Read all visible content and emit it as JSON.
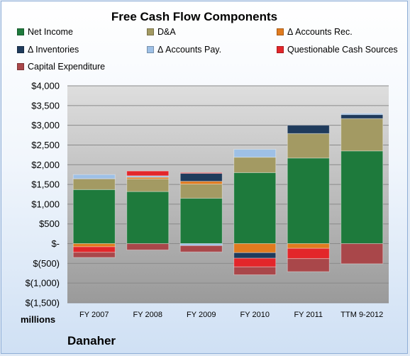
{
  "chart_data": {
    "type": "bar",
    "stacked": true,
    "title": "Free Cash Flow Components",
    "categories": [
      "FY 2007",
      "FY 2008",
      "FY 2009",
      "FY 2010",
      "FY 2011",
      "TTM 9-2012"
    ],
    "series": [
      {
        "name": "Net Income",
        "color": "#1e7a3c",
        "values": [
          1370,
          1320,
          1150,
          1800,
          2170,
          2350
        ]
      },
      {
        "name": "D&A",
        "color": "#a39a63",
        "values": [
          270,
          320,
          360,
          390,
          620,
          820
        ]
      },
      {
        "name": "Δ Accounts Rec.",
        "color": "#e07b1f",
        "values": [
          -80,
          40,
          70,
          -230,
          -120,
          0
        ]
      },
      {
        "name": "Δ Inventories",
        "color": "#1f3b5c",
        "values": [
          10,
          10,
          200,
          -140,
          210,
          100
        ]
      },
      {
        "name": "Δ Accounts Pay.",
        "color": "#9ec0e6",
        "values": [
          100,
          30,
          -50,
          200,
          0,
          30
        ]
      },
      {
        "name": "Questionable Cash Sources",
        "color": "#e3262a",
        "values": [
          -140,
          120,
          20,
          -220,
          -260,
          0
        ]
      },
      {
        "name": "Capital Expenditure",
        "color": "#a9474a",
        "values": [
          -130,
          -160,
          -160,
          -200,
          -330,
          -510
        ]
      }
    ],
    "ylim": [
      -1500,
      4000
    ],
    "ytick_values": [
      4000,
      3500,
      3000,
      2500,
      2000,
      1500,
      1000,
      500,
      0,
      -500,
      -1000,
      -1500
    ],
    "ytick_labels": [
      "$4,000",
      "$3,500",
      "$3,000",
      "$2,500",
      "$2,000",
      "$1,500",
      "$1,000",
      "$500",
      "$-",
      "$(500)",
      "$(1,000)",
      "$(1,500)"
    ],
    "units_label": "millions",
    "company": "Danaher",
    "grid": true,
    "legend_position": "top"
  }
}
